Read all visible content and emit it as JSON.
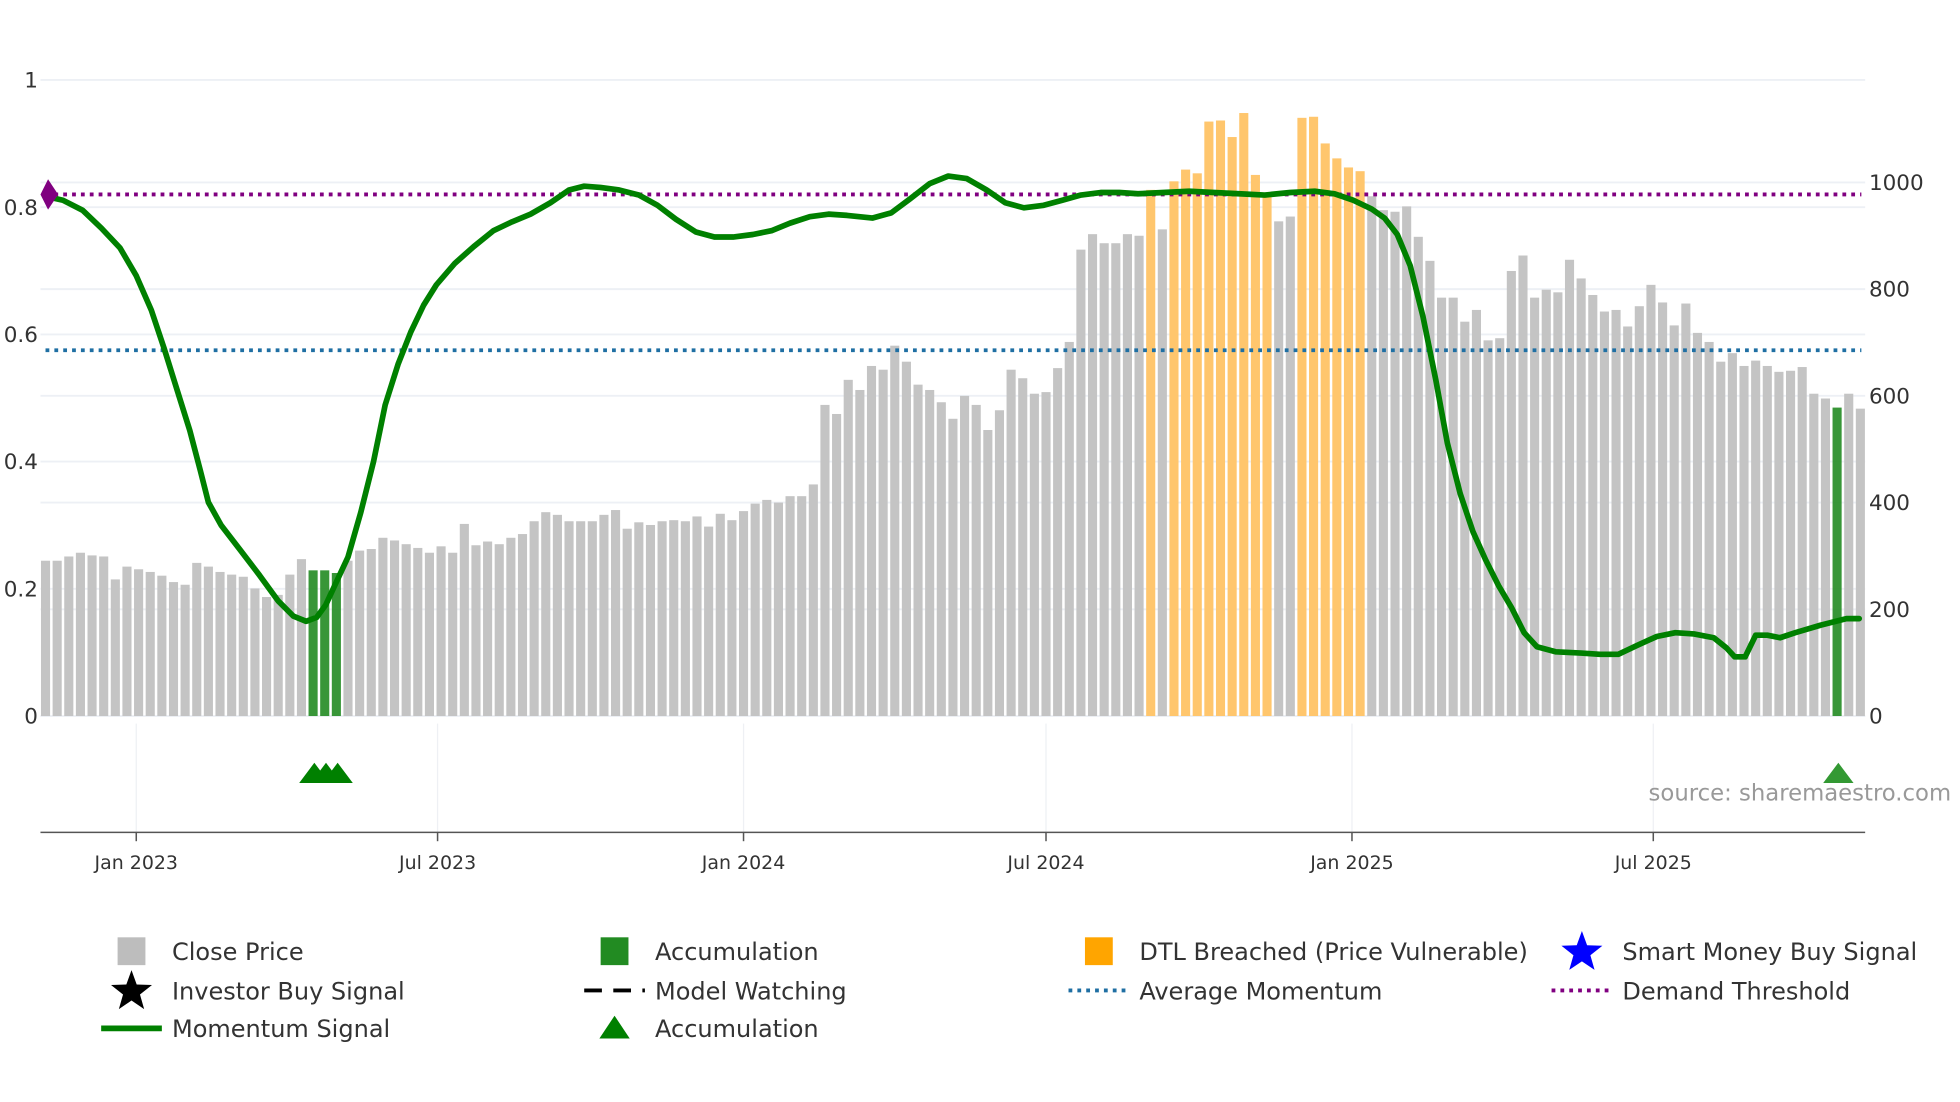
{
  "chart_data": {
    "type": "bar",
    "source_label": "source: sharemaestro.com",
    "left_axis": {
      "ticks": [
        "0",
        "0.2",
        "0.4",
        "0.6",
        "0.8",
        "1"
      ],
      "tick_values": [
        0,
        0.2,
        0.4,
        0.6,
        0.8,
        1
      ],
      "range": [
        0,
        1
      ]
    },
    "right_axis": {
      "ticks": [
        "0",
        "200",
        "400",
        "600",
        "800",
        "1000"
      ],
      "tick_values": [
        0,
        200,
        400,
        600,
        800,
        1000
      ],
      "range": [
        0,
        1190
      ]
    },
    "x_axis": {
      "start": "2022-11-07",
      "interval": "weekly",
      "tick_labels": [
        "Jan 2023",
        "Jul 2023",
        "Jan 2024",
        "Jul 2024",
        "Jan 2025",
        "Jul 2025"
      ],
      "tick_weeks": [
        7.8,
        33.7,
        60.0,
        86.0,
        112.3,
        138.2
      ]
    },
    "colors": {
      "close": "#c4c4c4",
      "accumulation": "#228b22",
      "dtl": "#ffc66d",
      "dtl_legend": "#ffa500",
      "momentum": "#008000",
      "avg": "#1f6fa3",
      "demand": "#800080",
      "star_blue": "#0000ff"
    },
    "close_price": [
      291,
      291,
      299,
      306,
      301,
      299,
      256,
      280,
      275,
      270,
      263,
      251,
      246,
      287,
      280,
      270,
      265,
      261,
      239,
      223,
      227,
      265,
      294,
      273,
      273,
      268,
      291,
      310,
      313,
      334,
      329,
      322,
      315,
      306,
      318,
      306,
      360,
      320,
      327,
      322,
      334,
      341,
      365,
      382,
      377,
      365,
      365,
      365,
      377,
      386,
      351,
      363,
      358,
      365,
      367,
      365,
      374,
      355,
      379,
      367,
      384,
      398,
      405,
      400,
      412,
      412,
      434,
      583,
      566,
      630,
      611,
      656,
      649,
      694,
      664,
      621,
      611,
      588,
      557,
      600,
      583,
      536,
      573,
      649,
      633,
      604,
      607,
      652,
      701,
      874,
      903,
      886,
      886,
      903,
      900,
      986,
      912,
      1002,
      1024,
      1017,
      1114,
      1116,
      1085,
      1130,
      1014,
      981,
      927,
      936,
      1121,
      1123,
      1073,
      1045,
      1028,
      1021,
      974,
      948,
      945,
      955,
      898,
      853,
      784,
      784,
      739,
      761,
      704,
      708,
      834,
      863,
      784,
      799,
      794,
      855,
      820,
      789,
      758,
      761,
      730,
      768,
      808,
      775,
      732,
      773,
      718,
      701,
      664,
      680,
      656,
      666,
      656,
      645,
      647,
      654,
      604,
      595,
      578,
      604,
      576
    ],
    "accumulation_weeks": [
      23,
      24,
      25,
      154
    ],
    "dtl_breached_weeks": [
      95,
      97,
      98,
      99,
      100,
      101,
      102,
      103,
      104,
      105,
      108,
      109,
      110,
      111,
      112,
      113
    ],
    "momentum": [
      [
        0,
        0.817
      ],
      [
        1.5,
        0.811
      ],
      [
        3.2,
        0.795
      ],
      [
        4.8,
        0.767
      ],
      [
        6.4,
        0.736
      ],
      [
        7.8,
        0.692
      ],
      [
        9.1,
        0.638
      ],
      [
        10.2,
        0.578
      ],
      [
        11.3,
        0.513
      ],
      [
        12.4,
        0.449
      ],
      [
        13.3,
        0.386
      ],
      [
        14.0,
        0.336
      ],
      [
        15.1,
        0.3
      ],
      [
        16.7,
        0.262
      ],
      [
        18.4,
        0.221
      ],
      [
        20.0,
        0.181
      ],
      [
        21.3,
        0.157
      ],
      [
        22.4,
        0.149
      ],
      [
        23.3,
        0.155
      ],
      [
        24.1,
        0.175
      ],
      [
        24.9,
        0.207
      ],
      [
        26.0,
        0.25
      ],
      [
        27.1,
        0.32
      ],
      [
        28.2,
        0.4
      ],
      [
        29.2,
        0.489
      ],
      [
        30.3,
        0.553
      ],
      [
        31.4,
        0.604
      ],
      [
        32.5,
        0.646
      ],
      [
        33.6,
        0.678
      ],
      [
        35.2,
        0.712
      ],
      [
        36.8,
        0.738
      ],
      [
        38.5,
        0.763
      ],
      [
        40.1,
        0.777
      ],
      [
        41.7,
        0.789
      ],
      [
        43.4,
        0.807
      ],
      [
        45.0,
        0.827
      ],
      [
        46.3,
        0.833
      ],
      [
        47.7,
        0.831
      ],
      [
        49.3,
        0.827
      ],
      [
        51.0,
        0.819
      ],
      [
        52.6,
        0.803
      ],
      [
        54.2,
        0.781
      ],
      [
        55.9,
        0.761
      ],
      [
        57.5,
        0.753
      ],
      [
        59.1,
        0.753
      ],
      [
        60.8,
        0.757
      ],
      [
        62.4,
        0.763
      ],
      [
        64.0,
        0.775
      ],
      [
        65.7,
        0.785
      ],
      [
        67.3,
        0.789
      ],
      [
        68.9,
        0.787
      ],
      [
        71.1,
        0.783
      ],
      [
        72.7,
        0.791
      ],
      [
        74.3,
        0.813
      ],
      [
        76.0,
        0.837
      ],
      [
        77.6,
        0.849
      ],
      [
        79.2,
        0.845
      ],
      [
        80.9,
        0.827
      ],
      [
        82.5,
        0.807
      ],
      [
        84.1,
        0.799
      ],
      [
        85.8,
        0.803
      ],
      [
        87.4,
        0.811
      ],
      [
        89.0,
        0.819
      ],
      [
        90.7,
        0.823
      ],
      [
        92.3,
        0.823
      ],
      [
        93.9,
        0.821
      ],
      [
        96.1,
        0.823
      ],
      [
        98.3,
        0.825
      ],
      [
        100.4,
        0.823
      ],
      [
        102.6,
        0.821
      ],
      [
        104.8,
        0.819
      ],
      [
        107.0,
        0.823
      ],
      [
        109.1,
        0.825
      ],
      [
        110.8,
        0.821
      ],
      [
        112.4,
        0.811
      ],
      [
        114.0,
        0.797
      ],
      [
        115.1,
        0.783
      ],
      [
        116.2,
        0.757
      ],
      [
        117.3,
        0.708
      ],
      [
        118.4,
        0.628
      ],
      [
        119.5,
        0.529
      ],
      [
        120.5,
        0.429
      ],
      [
        121.6,
        0.35
      ],
      [
        122.7,
        0.29
      ],
      [
        123.8,
        0.245
      ],
      [
        124.9,
        0.205
      ],
      [
        126.0,
        0.171
      ],
      [
        127.1,
        0.131
      ],
      [
        128.2,
        0.109
      ],
      [
        129.8,
        0.101
      ],
      [
        132.0,
        0.099
      ],
      [
        133.6,
        0.097
      ],
      [
        135.2,
        0.097
      ],
      [
        136.8,
        0.111
      ],
      [
        138.5,
        0.125
      ],
      [
        140.1,
        0.131
      ],
      [
        141.7,
        0.129
      ],
      [
        143.4,
        0.123
      ],
      [
        144.5,
        0.107
      ],
      [
        145.2,
        0.093
      ],
      [
        146.1,
        0.093
      ],
      [
        147.0,
        0.127
      ],
      [
        148.0,
        0.127
      ],
      [
        149.1,
        0.123
      ],
      [
        150.4,
        0.131
      ],
      [
        152.6,
        0.143
      ],
      [
        154.8,
        0.153
      ],
      [
        155.9,
        0.153
      ]
    ],
    "demand_threshold": 0.82,
    "average_momentum": 0.575,
    "demand_marker_week": 0,
    "accumulation_triangle_weeks": [
      23,
      24,
      25,
      154
    ],
    "legend": [
      {
        "label": "Close Price",
        "symbol": "square",
        "color": "#bdbdbd"
      },
      {
        "label": "Accumulation",
        "symbol": "square",
        "color": "#228b22"
      },
      {
        "label": "DTL Breached (Price Vulnerable)",
        "symbol": "square",
        "color": "#ffa500"
      },
      {
        "label": "Smart Money Buy Signal",
        "symbol": "star",
        "color": "#0000ff"
      },
      {
        "label": "Investor Buy Signal",
        "symbol": "star",
        "color": "#000000"
      },
      {
        "label": "Model Watching",
        "symbol": "dash",
        "color": "#000000"
      },
      {
        "label": "Average Momentum",
        "symbol": "dot",
        "color": "#1f6fa3"
      },
      {
        "label": "Demand Threshold",
        "symbol": "dot",
        "color": "#800080"
      },
      {
        "label": "Momentum Signal",
        "symbol": "line",
        "color": "#008000"
      },
      {
        "label": "Accumulation",
        "symbol": "triangle",
        "color": "#008000"
      }
    ],
    "legend_placement": "bottom"
  }
}
